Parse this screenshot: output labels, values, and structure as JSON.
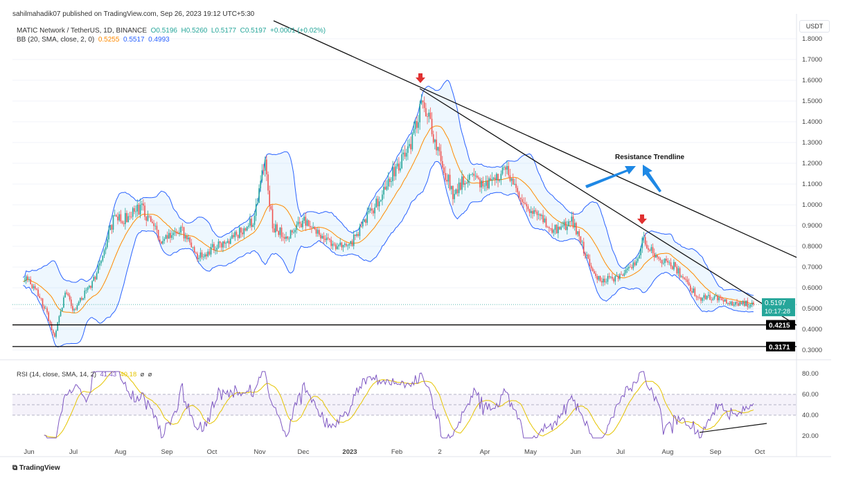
{
  "header": {
    "published": "sahilmahadik07 published on TradingView.com, Sep 26, 2023 19:12 UTC+5:30",
    "symbol": "MATIC Network / TetherUS, 1D, BINANCE",
    "open": "O0.5196",
    "high": "H0.5260",
    "low": "L0.5177",
    "close": "C0.5197",
    "change": "+0.0001 (+0.02%)",
    "bb_label": "BB (20, SMA, close, 2, 0)",
    "bb_basis": "0.5255",
    "bb_upper": "0.5517",
    "bb_lower": "0.4993"
  },
  "rsi_legend": {
    "label": "RSI (14, close, SMA, 14, 2)",
    "rsi": "41.43",
    "sma": "40.18",
    "v3": "ø",
    "v4": "ø"
  },
  "currency": "USDT",
  "current_price": {
    "price": "0.5197",
    "countdown": "10:17:28"
  },
  "levels": [
    {
      "label": "0.4215",
      "value": 0.4215
    },
    {
      "label": "0.3171",
      "value": 0.3171
    }
  ],
  "annotation": "Resistance Trendline",
  "colors": {
    "up": "#26a69a",
    "down": "#ef5350",
    "bb_basis": "#ff8a00",
    "bb_band": "#2962ff",
    "rsi": "#7e57c2",
    "rsi_ma": "#e5c400",
    "arrow_red": "#e03131",
    "arrow_blue": "#1e88e5"
  },
  "logo": "TradingView",
  "chart_data": {
    "type": "candlestick",
    "ylim": [
      0.3,
      1.8
    ],
    "price_ticks": [
      "1.8000",
      "1.7000",
      "1.6000",
      "1.5000",
      "1.4000",
      "1.3000",
      "1.2000",
      "1.1000",
      "1.0000",
      "0.9000",
      "0.8000",
      "0.7000",
      "0.6000",
      "0.5000",
      "0.4000",
      "0.3000"
    ],
    "rsi_ticks": [
      "80.00",
      "60.00",
      "40.00",
      "20.00"
    ],
    "x_ticks": [
      "Jun",
      "Jul",
      "Aug",
      "Sep",
      "Oct",
      "Nov",
      "Dec",
      "2023",
      "Feb",
      "2",
      "Apr",
      "May",
      "Jun",
      "Jul",
      "Aug",
      "Sep",
      "Oct"
    ],
    "approx_close": [
      [
        "2022-05-28",
        0.65
      ],
      [
        "2022-06-01",
        0.64
      ],
      [
        "2022-06-12",
        0.5
      ],
      [
        "2022-06-18",
        0.36
      ],
      [
        "2022-06-25",
        0.58
      ],
      [
        "2022-07-01",
        0.49
      ],
      [
        "2022-07-15",
        0.65
      ],
      [
        "2022-07-28",
        0.95
      ],
      [
        "2022-08-01",
        0.92
      ],
      [
        "2022-08-15",
        0.99
      ],
      [
        "2022-08-28",
        0.82
      ],
      [
        "2022-09-10",
        0.89
      ],
      [
        "2022-09-20",
        0.75
      ],
      [
        "2022-10-01",
        0.79
      ],
      [
        "2022-10-15",
        0.84
      ],
      [
        "2022-10-28",
        0.92
      ],
      [
        "2022-11-05",
        1.22
      ],
      [
        "2022-11-10",
        0.89
      ],
      [
        "2022-11-20",
        0.85
      ],
      [
        "2022-12-01",
        0.92
      ],
      [
        "2022-12-15",
        0.82
      ],
      [
        "2022-12-30",
        0.79
      ],
      [
        "2023-01-10",
        0.92
      ],
      [
        "2023-01-20",
        1.02
      ],
      [
        "2023-02-01",
        1.19
      ],
      [
        "2023-02-10",
        1.29
      ],
      [
        "2023-02-18",
        1.52
      ],
      [
        "2023-02-25",
        1.32
      ],
      [
        "2023-03-10",
        1.05
      ],
      [
        "2023-03-20",
        1.14
      ],
      [
        "2023-04-01",
        1.1
      ],
      [
        "2023-04-15",
        1.17
      ],
      [
        "2023-04-25",
        1.02
      ],
      [
        "2023-05-05",
        0.95
      ],
      [
        "2023-05-15",
        0.87
      ],
      [
        "2023-05-28",
        0.92
      ],
      [
        "2023-06-05",
        0.79
      ],
      [
        "2023-06-12",
        0.65
      ],
      [
        "2023-06-22",
        0.64
      ],
      [
        "2023-07-01",
        0.67
      ],
      [
        "2023-07-10",
        0.72
      ],
      [
        "2023-07-14",
        0.84
      ],
      [
        "2023-07-25",
        0.74
      ],
      [
        "2023-08-05",
        0.7
      ],
      [
        "2023-08-15",
        0.6
      ],
      [
        "2023-08-20",
        0.55
      ],
      [
        "2023-09-01",
        0.55
      ],
      [
        "2023-09-12",
        0.53
      ],
      [
        "2023-09-26",
        0.5197
      ]
    ]
  }
}
